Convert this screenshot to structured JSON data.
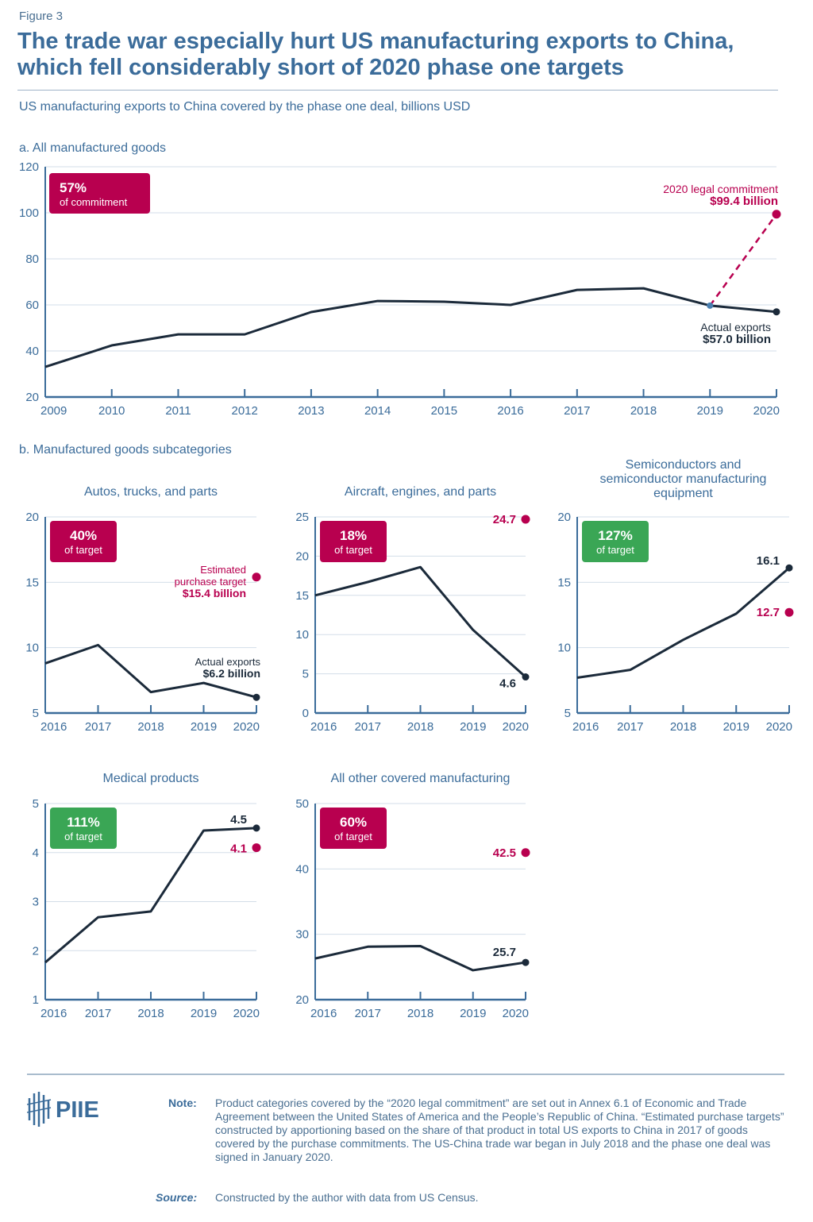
{
  "figure_label": "Figure 3",
  "title": "The trade war especially hurt US manufacturing exports to China, which fell considerably short of 2020 phase one targets",
  "subtitle": "US manufacturing exports to China covered by the phase one deal, billions USD",
  "section_a": "a. All manufactured goods",
  "section_b": "b. Manufactured goods subcategories",
  "colors": {
    "actual": "#1b2a3a",
    "target": "#b8004f",
    "badge_below": "#b8004f",
    "badge_above": "#3aa655",
    "axis": "#3b6c9a",
    "grid": "#d3dee8"
  },
  "chart_data": [
    {
      "type": "line",
      "title": "",
      "x": [
        2009,
        2010,
        2011,
        2012,
        2013,
        2014,
        2015,
        2016,
        2017,
        2018,
        2019,
        2020
      ],
      "series": [
        {
          "name": "Actual exports",
          "values": [
            33.1,
            42.4,
            47.2,
            47.2,
            56.9,
            61.7,
            61.4,
            60.0,
            66.5,
            67.2,
            59.7,
            57.0
          ]
        }
      ],
      "target": {
        "from_year": 2019,
        "year": 2020,
        "value": 99.4,
        "style": "dashed"
      },
      "ylim": [
        20,
        120
      ],
      "yticks": [
        20,
        40,
        60,
        80,
        100,
        120
      ],
      "badge": {
        "value": "57%",
        "label": "of commitment",
        "status": "below"
      },
      "annotations": {
        "target_label": "2020 legal commitment",
        "target_value": "$99.4 billion",
        "actual_label": "Actual exports",
        "actual_value": "$57.0 billion"
      },
      "grid": true
    },
    {
      "type": "line",
      "title": "Autos, trucks, and parts",
      "x": [
        2016,
        2017,
        2018,
        2019,
        2020
      ],
      "series": [
        {
          "name": "Actual exports",
          "values": [
            8.8,
            10.2,
            6.6,
            7.3,
            6.2
          ]
        }
      ],
      "target": {
        "year": 2020,
        "value": 15.4
      },
      "ylim": [
        5,
        20
      ],
      "yticks": [
        5,
        10,
        15,
        20
      ],
      "badge": {
        "value": "40%",
        "label": "of target",
        "status": "below"
      },
      "annotations": {
        "target_label": "Estimated purchase target",
        "target_value": "$15.4 billion",
        "actual_label": "Actual exports",
        "actual_value": "$6.2 billion"
      },
      "grid": true
    },
    {
      "type": "line",
      "title": "Aircraft, engines, and parts",
      "x": [
        2016,
        2017,
        2018,
        2019,
        2020
      ],
      "series": [
        {
          "name": "Actual exports",
          "values": [
            15.0,
            16.7,
            18.6,
            10.6,
            4.6
          ]
        }
      ],
      "target": {
        "year": 2020,
        "value": 24.7
      },
      "ylim": [
        0,
        25
      ],
      "yticks": [
        0,
        5,
        10,
        15,
        20,
        25
      ],
      "badge": {
        "value": "18%",
        "label": "of target",
        "status": "below"
      },
      "annotations": {
        "target_value": "24.7",
        "actual_value": "4.6"
      },
      "grid": true
    },
    {
      "type": "line",
      "title": "Semiconductors and semiconductor manufacturing equipment",
      "x": [
        2016,
        2017,
        2018,
        2019,
        2020
      ],
      "series": [
        {
          "name": "Actual exports",
          "values": [
            7.7,
            8.3,
            10.6,
            12.6,
            16.1
          ]
        }
      ],
      "target": {
        "year": 2020,
        "value": 12.7
      },
      "ylim": [
        5,
        20
      ],
      "yticks": [
        5,
        10,
        15,
        20
      ],
      "badge": {
        "value": "127%",
        "label": "of target",
        "status": "above"
      },
      "annotations": {
        "target_value": "12.7",
        "actual_value": "16.1"
      },
      "grid": true
    },
    {
      "type": "line",
      "title": "Medical products",
      "x": [
        2016,
        2017,
        2018,
        2019,
        2020
      ],
      "series": [
        {
          "name": "Actual exports",
          "values": [
            1.76,
            2.68,
            2.8,
            4.45,
            4.5
          ]
        }
      ],
      "target": {
        "year": 2020,
        "value": 4.1
      },
      "ylim": [
        1,
        5
      ],
      "yticks": [
        1,
        2,
        3,
        4,
        5
      ],
      "badge": {
        "value": "111%",
        "label": "of target",
        "status": "above"
      },
      "annotations": {
        "target_value": "4.1",
        "actual_value": "4.5"
      },
      "grid": true
    },
    {
      "type": "line",
      "title": "All other covered manufacturing",
      "x": [
        2016,
        2017,
        2018,
        2019,
        2020
      ],
      "series": [
        {
          "name": "Actual exports",
          "values": [
            26.3,
            28.1,
            28.2,
            24.5,
            25.7
          ]
        }
      ],
      "target": {
        "year": 2020,
        "value": 42.5
      },
      "ylim": [
        20,
        50
      ],
      "yticks": [
        20,
        30,
        40,
        50
      ],
      "badge": {
        "value": "60%",
        "label": "of target",
        "status": "below"
      },
      "annotations": {
        "target_value": "42.5",
        "actual_value": "25.7"
      },
      "grid": true
    }
  ],
  "footer": {
    "logo_text": "PIIE",
    "note_label": "Note:",
    "note_text": "Product categories covered by the “2020 legal commitment” are set out in Annex 6.1 of Economic and Trade Agreement between the United States of America and the People’s Republic of China. “Estimated purchase targets” constructed by apportioning based on the share of that product in total US exports to China in 2017 of goods covered by the purchase commitments. The US-China trade war began in July 2018 and the phase one deal was signed in January 2020.",
    "source_label": "Source:",
    "source_text": "Constructed by the author with data from US Census."
  }
}
